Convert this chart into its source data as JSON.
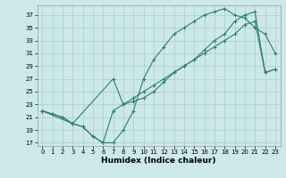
{
  "xlabel": "Humidex (Indice chaleur)",
  "bg_color": "#cce8e8",
  "grid_color": "#aacccc",
  "line_color": "#2e7f6f",
  "curve1_x": [
    0,
    1,
    2,
    3,
    4,
    5,
    6,
    7,
    8,
    9,
    10,
    11,
    12,
    13,
    14,
    15,
    16,
    17,
    18,
    19,
    20,
    21,
    22,
    23
  ],
  "curve1_y": [
    22,
    21.5,
    21,
    20,
    19.5,
    18,
    17,
    17,
    19,
    22,
    27,
    30,
    32,
    34,
    35,
    36,
    37,
    37.5,
    38,
    37,
    36.5,
    35,
    34,
    31
  ],
  "curve2_x": [
    0,
    1,
    2,
    3,
    4,
    5,
    6,
    7,
    8,
    9,
    10,
    11,
    12,
    13,
    14,
    15,
    16,
    17,
    18,
    19,
    20,
    21,
    22,
    23
  ],
  "curve2_y": [
    22,
    21.5,
    21,
    20,
    19.5,
    18,
    17,
    22,
    23,
    24,
    25,
    26,
    27,
    28,
    29,
    30,
    31,
    32,
    33,
    34,
    35.5,
    36,
    28,
    28.5
  ],
  "curve3_x": [
    0,
    3,
    7,
    8,
    9,
    10,
    11,
    12,
    13,
    14,
    15,
    16,
    17,
    18,
    19,
    20,
    21,
    22,
    23
  ],
  "curve3_y": [
    22,
    20,
    27,
    23,
    23.5,
    24,
    25,
    26.5,
    28,
    29,
    30,
    31.5,
    33,
    34,
    36,
    37,
    37.5,
    28,
    28.5
  ],
  "xlim": [
    -0.5,
    23.5
  ],
  "ylim": [
    16.5,
    38.5
  ],
  "yticks": [
    17,
    19,
    21,
    23,
    25,
    27,
    29,
    31,
    33,
    35,
    37
  ],
  "xticks": [
    0,
    1,
    2,
    3,
    4,
    5,
    6,
    7,
    8,
    9,
    10,
    11,
    12,
    13,
    14,
    15,
    16,
    17,
    18,
    19,
    20,
    21,
    22,
    23
  ],
  "marker_size": 2.5,
  "line_width": 0.8,
  "tick_fontsize": 5.0,
  "xlabel_fontsize": 6.5
}
